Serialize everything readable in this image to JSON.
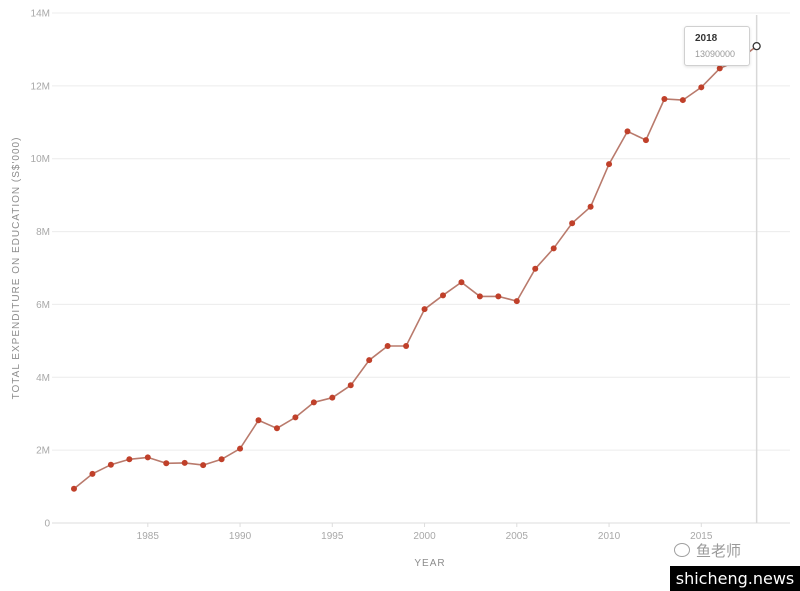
{
  "chart_data": {
    "type": "line",
    "xlabel": "YEAR",
    "ylabel": "TOTAL EXPENDITURE ON EDUCATION (S$'000)",
    "xlim": [
      1980.5,
      2018.5
    ],
    "ylim": [
      0,
      14000000
    ],
    "x_ticks": [
      1985,
      1990,
      1995,
      2000,
      2005,
      2010,
      2015
    ],
    "y_ticks": [
      {
        "value": 0,
        "label": "0"
      },
      {
        "value": 2000000,
        "label": "2M"
      },
      {
        "value": 4000000,
        "label": "4M"
      },
      {
        "value": 6000000,
        "label": "6M"
      },
      {
        "value": 8000000,
        "label": "8M"
      },
      {
        "value": 10000000,
        "label": "10M"
      },
      {
        "value": 12000000,
        "label": "12M"
      },
      {
        "value": 14000000,
        "label": "14M"
      }
    ],
    "grid": true,
    "series": [
      {
        "color": "#c0402a",
        "line_color": "#b97a6c",
        "points": [
          {
            "x": 1981,
            "y": 940000
          },
          {
            "x": 1982,
            "y": 1350000
          },
          {
            "x": 1983,
            "y": 1600000
          },
          {
            "x": 1984,
            "y": 1750000
          },
          {
            "x": 1985,
            "y": 1800000
          },
          {
            "x": 1986,
            "y": 1640000
          },
          {
            "x": 1987,
            "y": 1650000
          },
          {
            "x": 1988,
            "y": 1590000
          },
          {
            "x": 1989,
            "y": 1750000
          },
          {
            "x": 1990,
            "y": 2040000
          },
          {
            "x": 1991,
            "y": 2820000
          },
          {
            "x": 1992,
            "y": 2600000
          },
          {
            "x": 1993,
            "y": 2900000
          },
          {
            "x": 1994,
            "y": 3310000
          },
          {
            "x": 1995,
            "y": 3440000
          },
          {
            "x": 1996,
            "y": 3780000
          },
          {
            "x": 1997,
            "y": 4470000
          },
          {
            "x": 1998,
            "y": 4860000
          },
          {
            "x": 1999,
            "y": 4860000
          },
          {
            "x": 2000,
            "y": 5870000
          },
          {
            "x": 2001,
            "y": 6250000
          },
          {
            "x": 2002,
            "y": 6610000
          },
          {
            "x": 2003,
            "y": 6220000
          },
          {
            "x": 2004,
            "y": 6220000
          },
          {
            "x": 2005,
            "y": 6090000
          },
          {
            "x": 2006,
            "y": 6980000
          },
          {
            "x": 2007,
            "y": 7540000
          },
          {
            "x": 2008,
            "y": 8230000
          },
          {
            "x": 2009,
            "y": 8680000
          },
          {
            "x": 2010,
            "y": 9850000
          },
          {
            "x": 2011,
            "y": 10750000
          },
          {
            "x": 2012,
            "y": 10510000
          },
          {
            "x": 2013,
            "y": 11640000
          },
          {
            "x": 2014,
            "y": 11610000
          },
          {
            "x": 2015,
            "y": 11960000
          },
          {
            "x": 2016,
            "y": 12480000
          },
          {
            "x": 2017,
            "y": 12700000
          },
          {
            "x": 2018,
            "y": 13090000
          }
        ]
      }
    ],
    "tooltip": {
      "year": "2018",
      "value": "13090000"
    }
  },
  "watermark": {
    "brand": "鱼老师",
    "site": "shicheng.news"
  },
  "colors": {
    "point": "#c0402a",
    "line": "#b97a6c",
    "hover_line": "#d8d8d8",
    "grid": "#ececec"
  }
}
